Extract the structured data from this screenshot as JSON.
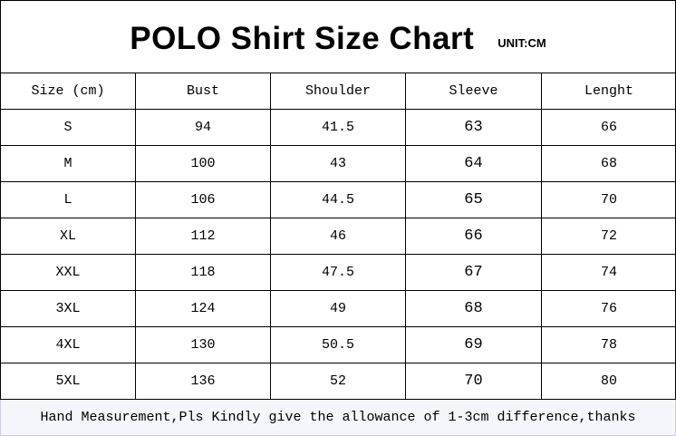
{
  "title": "POLO Shirt Size Chart",
  "unit": "UNIT:CM",
  "headers": [
    "Size (cm)",
    "Bust",
    "Shoulder",
    "Sleeve",
    "Lenght"
  ],
  "rows": [
    [
      "S",
      "94",
      "41.5",
      "63",
      "66"
    ],
    [
      "M",
      "100",
      "43",
      "64",
      "68"
    ],
    [
      "L",
      "106",
      "44.5",
      "65",
      "70"
    ],
    [
      "XL",
      "112",
      "46",
      "66",
      "72"
    ],
    [
      "XXL",
      "118",
      "47.5",
      "67",
      "74"
    ],
    [
      "3XL",
      "124",
      "49",
      "68",
      "76"
    ],
    [
      "4XL",
      "130",
      "50.5",
      "69",
      "78"
    ],
    [
      "5XL",
      "136",
      "52",
      "70",
      "80"
    ]
  ],
  "footer": "Hand Measurement,Pls Kindly give the allowance of 1-3cm difference,thanks"
}
